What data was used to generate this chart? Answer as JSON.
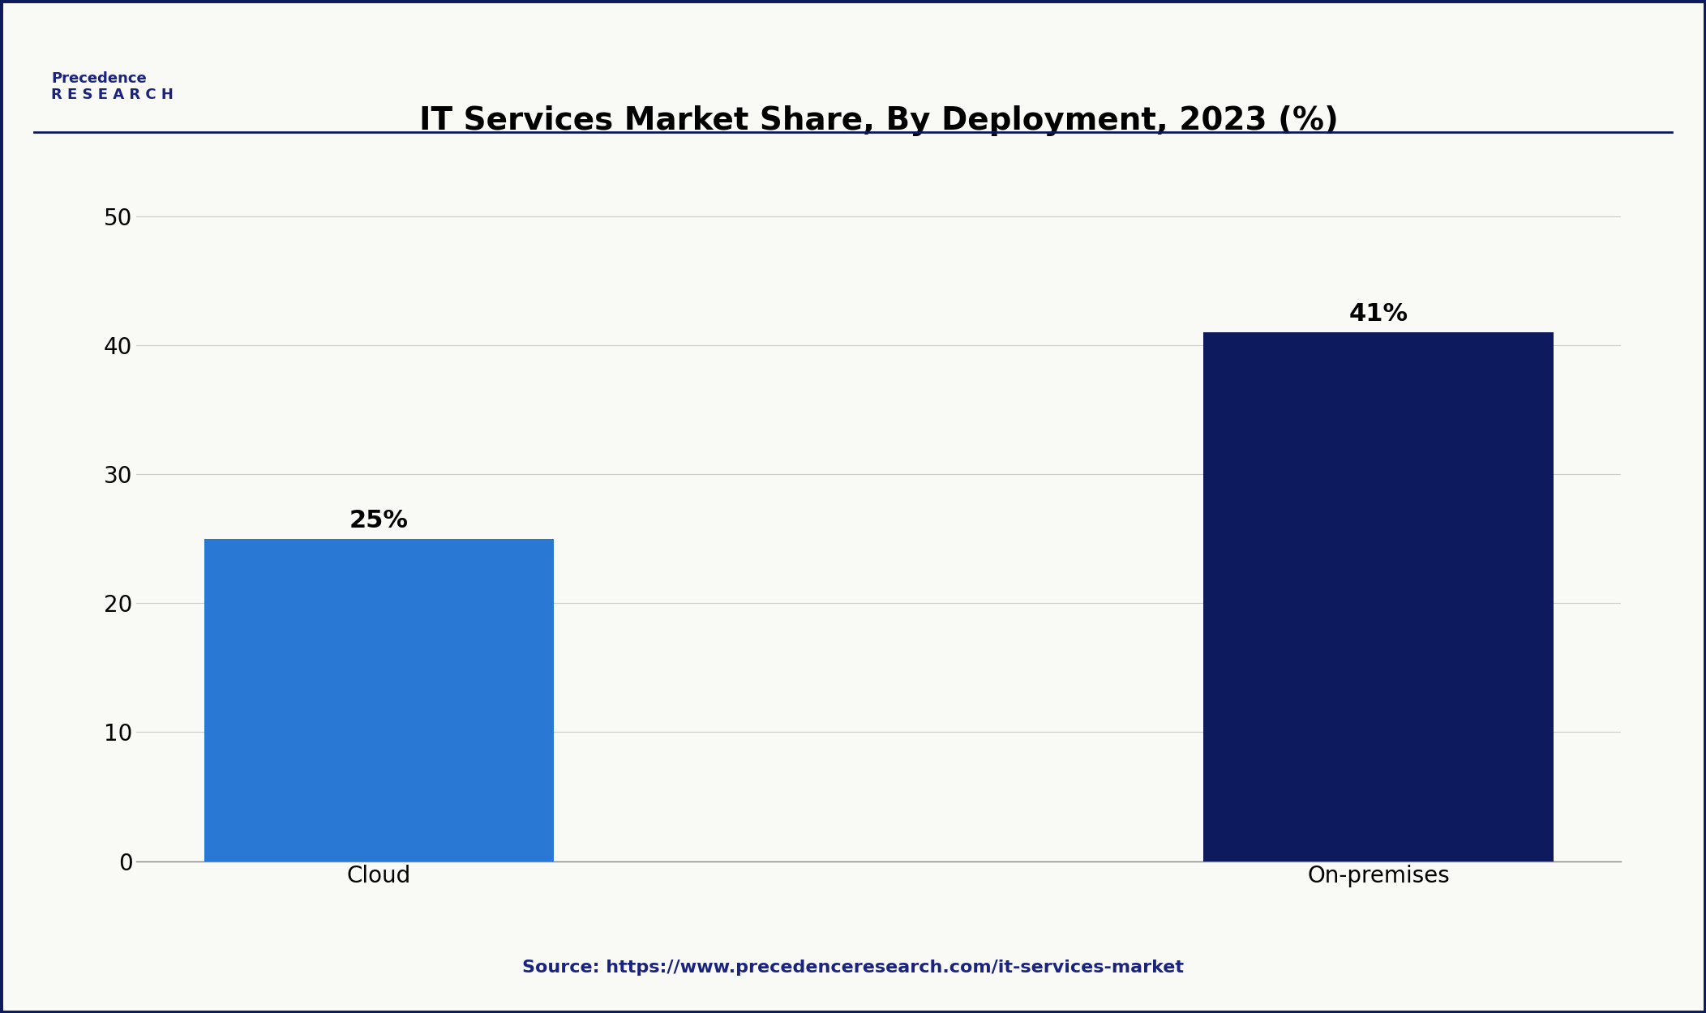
{
  "title": "IT Services Market Share, By Deployment, 2023 (%)",
  "categories": [
    "Cloud",
    "On-premises"
  ],
  "values": [
    25,
    41
  ],
  "labels": [
    "25%",
    "41%"
  ],
  "bar_colors": [
    "#2979d4",
    "#0d1a5e"
  ],
  "background_color": "#f9f9f6",
  "ylim": [
    0,
    55
  ],
  "yticks": [
    0,
    10,
    20,
    30,
    40,
    50
  ],
  "title_fontsize": 28,
  "tick_fontsize": 20,
  "label_fontsize": 22,
  "source_text": "Source: https://www.precedenceresearch.com/it-services-market",
  "source_fontsize": 16,
  "source_color": "#1a237e",
  "border_color": "#0d1a5e",
  "grid_color": "#cccccc"
}
